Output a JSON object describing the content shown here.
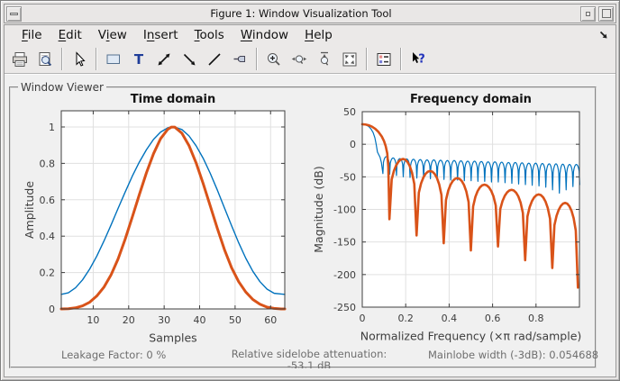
{
  "window": {
    "title": "Figure 1: Window Visualization Tool",
    "controls": [
      "window-menu-icon",
      "minimize-icon",
      "maximize-icon"
    ]
  },
  "menu": {
    "items": [
      {
        "pre": "",
        "mn": "F",
        "post": "ile"
      },
      {
        "pre": "",
        "mn": "E",
        "post": "dit"
      },
      {
        "pre": "V",
        "mn": "i",
        "post": "ew"
      },
      {
        "pre": "I",
        "mn": "n",
        "post": "sert"
      },
      {
        "pre": "",
        "mn": "T",
        "post": "ools"
      },
      {
        "pre": "",
        "mn": "W",
        "post": "indow"
      },
      {
        "pre": "",
        "mn": "H",
        "post": "elp"
      }
    ],
    "dock_icon": "dock-figure-icon"
  },
  "toolbar": {
    "buttons": [
      "print-icon",
      "print-preview-icon",
      "edit-plot-icon",
      "insert-rectangle-icon",
      "insert-text-icon",
      "insert-doublearrow-icon",
      "insert-arrow-icon",
      "insert-line-icon",
      "pin-to-axes-icon",
      "zoom-in-icon",
      "zoom-x-icon",
      "zoom-y-icon",
      "restore-view-icon",
      "legend-icon",
      "whats-this-icon"
    ]
  },
  "viewer": {
    "group_label": "Window Viewer"
  },
  "measurements": {
    "leakage": "Leakage Factor: 0 %",
    "sidelobe": "Relative sidelobe attenuation: -53.1 dB",
    "mainlobe_width": "Mainlobe width (-3dB): 0.054688"
  },
  "colors": {
    "blue": "#0072BD",
    "orange": "#D95319",
    "figure_bg": "#f0f0f0",
    "chrome_bg": "#e8e8e8",
    "grid": "#e0e0e0",
    "axis": "#3f3f3f"
  },
  "chart_data": [
    {
      "type": "line",
      "title": "Time domain",
      "xlabel": "Samples",
      "ylabel": "Amplitude",
      "xlim": [
        1,
        64
      ],
      "ylim": [
        0,
        1.089
      ],
      "grid": true,
      "xtick_vals": [
        10,
        20,
        30,
        40,
        50,
        60
      ],
      "xtick_labels": [
        "10",
        "20",
        "30",
        "40",
        "50",
        "60"
      ],
      "ytick_vals": [
        0,
        0.2,
        0.4,
        0.6,
        0.8,
        1
      ],
      "ytick_labels": [
        "0",
        "0.2",
        "0.4",
        "0.6",
        "0.8",
        "1"
      ],
      "series": [
        {
          "name": "window-1-hamming",
          "color": "#0072BD",
          "width": 1.4,
          "points": [
            [
              1,
              0.08
            ],
            [
              3,
              0.089
            ],
            [
              5,
              0.116
            ],
            [
              7,
              0.16
            ],
            [
              9,
              0.219
            ],
            [
              11,
              0.29
            ],
            [
              13,
              0.372
            ],
            [
              15,
              0.46
            ],
            [
              17,
              0.552
            ],
            [
              19,
              0.642
            ],
            [
              21,
              0.729
            ],
            [
              23,
              0.807
            ],
            [
              25,
              0.875
            ],
            [
              27,
              0.932
            ],
            [
              29,
              0.972
            ],
            [
              31,
              0.995
            ],
            [
              32,
              1.0
            ],
            [
              33,
              0.999
            ],
            [
              35,
              0.986
            ],
            [
              37,
              0.951
            ],
            [
              39,
              0.897
            ],
            [
              41,
              0.828
            ],
            [
              43,
              0.745
            ],
            [
              45,
              0.653
            ],
            [
              47,
              0.555
            ],
            [
              49,
              0.458
            ],
            [
              51,
              0.364
            ],
            [
              53,
              0.279
            ],
            [
              55,
              0.207
            ],
            [
              57,
              0.15
            ],
            [
              59,
              0.109
            ],
            [
              61,
              0.086
            ],
            [
              63,
              0.082
            ],
            [
              64,
              0.08
            ]
          ]
        },
        {
          "name": "window-2-parzen",
          "color": "#D95319",
          "width": 3,
          "points": [
            [
              1,
              0.0
            ],
            [
              3,
              0.001
            ],
            [
              5,
              0.006
            ],
            [
              7,
              0.017
            ],
            [
              9,
              0.037
            ],
            [
              11,
              0.071
            ],
            [
              13,
              0.119
            ],
            [
              15,
              0.186
            ],
            [
              17,
              0.274
            ],
            [
              19,
              0.383
            ],
            [
              21,
              0.504
            ],
            [
              23,
              0.628
            ],
            [
              25,
              0.748
            ],
            [
              27,
              0.853
            ],
            [
              29,
              0.936
            ],
            [
              31,
              0.987
            ],
            [
              32,
              0.999
            ],
            [
              33,
              0.999
            ],
            [
              35,
              0.966
            ],
            [
              37,
              0.898
            ],
            [
              39,
              0.803
            ],
            [
              41,
              0.689
            ],
            [
              43,
              0.566
            ],
            [
              45,
              0.442
            ],
            [
              47,
              0.326
            ],
            [
              49,
              0.227
            ],
            [
              51,
              0.15
            ],
            [
              53,
              0.093
            ],
            [
              55,
              0.052
            ],
            [
              57,
              0.026
            ],
            [
              59,
              0.01
            ],
            [
              61,
              0.003
            ],
            [
              63,
              0.0
            ],
            [
              64,
              0.0
            ]
          ]
        }
      ]
    },
    {
      "type": "line",
      "title": "Frequency domain",
      "xlabel": "Normalized Frequency  (×π rad/sample)",
      "ylabel": "Magnitude (dB)",
      "xlim": [
        0,
        1
      ],
      "ylim": [
        -250,
        50
      ],
      "grid": true,
      "xtick_vals": [
        0,
        0.2,
        0.4,
        0.6,
        0.8
      ],
      "xtick_labels": [
        "0",
        "0.2",
        "0.4",
        "0.6",
        "0.8"
      ],
      "ytick_vals": [
        50,
        0,
        -50,
        -100,
        -150,
        -200,
        -250
      ],
      "ytick_labels": [
        "50",
        "0",
        "-50",
        "-100",
        "-150",
        "-200",
        "-250"
      ],
      "series": [
        {
          "name": "window-1-response",
          "color": "#0072BD",
          "width": 1.2,
          "mainlobe": [
            [
              0,
              30.5
            ],
            [
              0.01,
              30.2
            ],
            [
              0.02,
              29.2
            ],
            [
              0.03,
              27.2
            ],
            [
              0.04,
              23.6
            ],
            [
              0.05,
              18
            ],
            [
              0.058,
              10
            ],
            [
              0.064,
              0
            ],
            [
              0.07,
              -12
            ],
            [
              0.076,
              -16
            ],
            [
              0.082,
              -20
            ],
            [
              0.088,
              -28
            ],
            [
              0.095,
              -45
            ]
          ],
          "lobes": {
            "start": 0.095,
            "spacing": 0.03125,
            "tops": [
              -19,
              -21,
              -22,
              -22.5,
              -23,
              -23.5,
              -24,
              -24,
              -24.5,
              -25,
              -25,
              -25.5,
              -26,
              -26,
              -26.5,
              -27,
              -27,
              -27.5,
              -28,
              -28,
              -28.5,
              -29,
              -29,
              -29.5,
              -30,
              -30,
              -30.5,
              -31,
              -31
            ],
            "nulls": [
              -45,
              -46,
              -48,
              -50,
              -51,
              -52,
              -53,
              -53,
              -54,
              -54,
              -55,
              -55,
              -56,
              -56,
              -57,
              -57,
              -58,
              -58,
              -59,
              -60,
              -61,
              -62,
              -63,
              -64,
              -66,
              -70,
              -75,
              -70,
              -65,
              -62
            ]
          }
        },
        {
          "name": "window-2-response",
          "color": "#D95319",
          "width": 2.6,
          "mainlobe": [
            [
              0,
              30.7
            ],
            [
              0.015,
              30.3
            ],
            [
              0.03,
              29.1
            ],
            [
              0.045,
              26.9
            ],
            [
              0.06,
              23.6
            ],
            [
              0.075,
              18.8
            ],
            [
              0.09,
              11.8
            ],
            [
              0.1,
              5
            ],
            [
              0.108,
              -3
            ],
            [
              0.115,
              -14
            ],
            [
              0.12,
              -35
            ],
            [
              0.125,
              -115
            ]
          ],
          "lobes": {
            "null_x": [
              0.125,
              0.25,
              0.375,
              0.5,
              0.625,
              0.75,
              0.875,
              0.993
            ],
            "null_d": [
              -115,
              -140,
              -152,
              -163,
              -157,
              -178,
              -190,
              -220
            ],
            "top_x": [
              0.1875,
              0.3125,
              0.4375,
              0.5625,
              0.6875,
              0.8125,
              0.9375
            ],
            "top_v": [
              -22.5,
              -41,
              -52,
              -62,
              -70,
              -77,
              -90
            ]
          }
        }
      ]
    }
  ]
}
